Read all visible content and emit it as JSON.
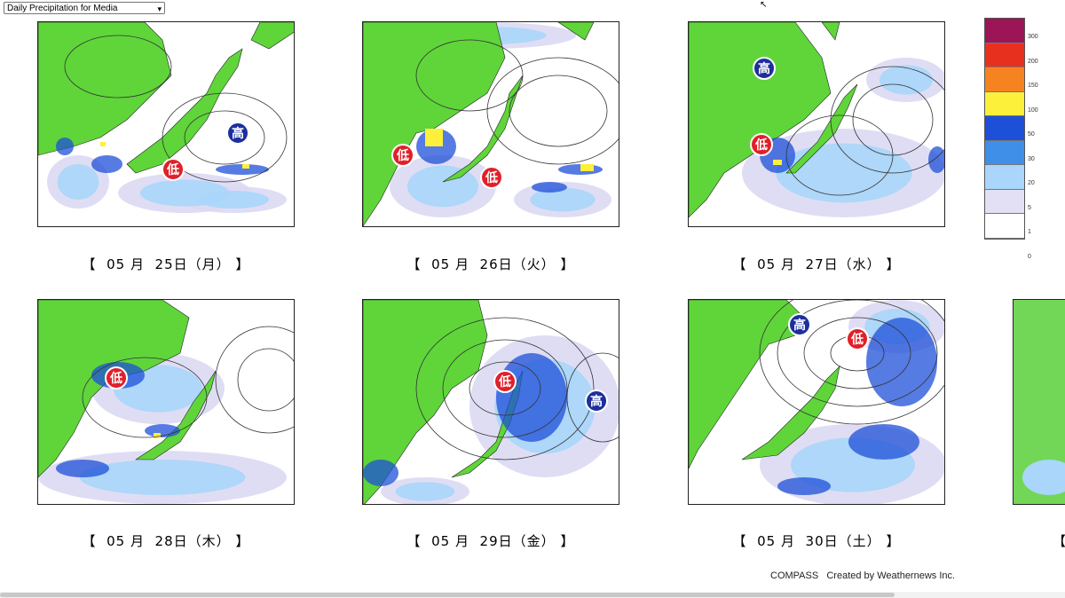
{
  "dropdown": {
    "selected": "Daily Precipitation for Media"
  },
  "maps": [
    {
      "month": "05",
      "month_unit": "月",
      "day": "25",
      "day_unit": "日",
      "weekday": "（月）",
      "pressure": [
        {
          "kind": "high",
          "text": "高"
        },
        {
          "kind": "low",
          "text": "低"
        }
      ]
    },
    {
      "month": "05",
      "month_unit": "月",
      "day": "26",
      "day_unit": "日",
      "weekday": "（火）",
      "pressure": [
        {
          "kind": "low",
          "text": "低"
        },
        {
          "kind": "low",
          "text": "低"
        }
      ]
    },
    {
      "month": "05",
      "month_unit": "月",
      "day": "27",
      "day_unit": "日",
      "weekday": "（水）",
      "pressure": [
        {
          "kind": "high",
          "text": "高"
        },
        {
          "kind": "low",
          "text": "低"
        }
      ]
    },
    {
      "month": "05",
      "month_unit": "月",
      "day": "28",
      "day_unit": "日",
      "weekday": "（木）",
      "pressure": [
        {
          "kind": "low",
          "text": "低"
        }
      ]
    },
    {
      "month": "05",
      "month_unit": "月",
      "day": "29",
      "day_unit": "日",
      "weekday": "（金）",
      "pressure": [
        {
          "kind": "low",
          "text": "低"
        },
        {
          "kind": "high",
          "text": "高"
        }
      ]
    },
    {
      "month": "05",
      "month_unit": "月",
      "day": "30",
      "day_unit": "日",
      "weekday": "（土）",
      "pressure": [
        {
          "kind": "high",
          "text": "高"
        },
        {
          "kind": "low",
          "text": "低"
        }
      ]
    }
  ],
  "caption_brackets": {
    "open": "【",
    "close": "】"
  },
  "legend": {
    "labels": [
      "300",
      "200",
      "150",
      "100",
      "50",
      "30",
      "20",
      "5",
      "1",
      "0"
    ],
    "colors": [
      "#9b1557",
      "#e8301f",
      "#f5831f",
      "#fcf03a",
      "#1e4fd8",
      "#3f8fe8",
      "#a9d6fa",
      "#e3dff5",
      "#ffffff"
    ]
  },
  "credit": "COMPASS   Created by Weathernews Inc.",
  "colors": {
    "land": "#5fd53a",
    "high_badge": "#1c2f9c",
    "low_badge": "#e0202a"
  },
  "icons": {
    "cursor": "cursor-icon",
    "dropdown": "chevron-down-icon"
  }
}
